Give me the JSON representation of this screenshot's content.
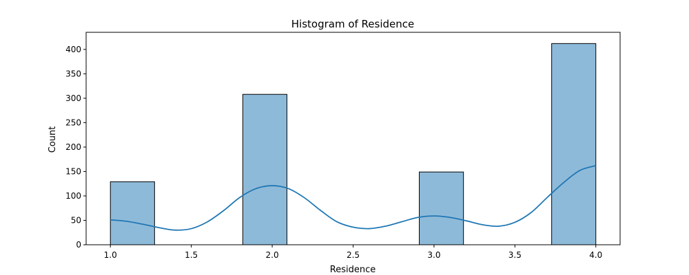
{
  "chart_data": {
    "type": "bar",
    "title": "Histogram of Residence",
    "xlabel": "Residence",
    "ylabel": "Count",
    "xlim": [
      0.85,
      4.15
    ],
    "ylim": [
      0,
      435
    ],
    "x_ticks": [
      "1.0",
      "1.5",
      "2.0",
      "2.5",
      "3.0",
      "3.5",
      "4.0"
    ],
    "y_ticks": [
      "0",
      "50",
      "100",
      "150",
      "200",
      "250",
      "300",
      "350",
      "400"
    ],
    "bins": [
      {
        "x0": 1.0,
        "x1": 1.273,
        "count": 129
      },
      {
        "x0": 1.818,
        "x1": 2.091,
        "count": 308
      },
      {
        "x0": 2.909,
        "x1": 3.182,
        "count": 149
      },
      {
        "x0": 3.727,
        "x1": 4.0,
        "count": 412
      }
    ],
    "kde": {
      "x": [
        1.0,
        1.1,
        1.2,
        1.3,
        1.4,
        1.5,
        1.6,
        1.7,
        1.8,
        1.9,
        2.0,
        2.1,
        2.2,
        2.3,
        2.4,
        2.5,
        2.6,
        2.7,
        2.8,
        2.9,
        3.0,
        3.1,
        3.2,
        3.3,
        3.4,
        3.5,
        3.6,
        3.7,
        3.8,
        3.9,
        4.0
      ],
      "y": [
        51,
        48,
        42,
        35,
        30,
        33,
        47,
        70,
        97,
        115,
        121,
        115,
        96,
        70,
        47,
        36,
        33,
        38,
        47,
        56,
        59,
        56,
        49,
        41,
        38,
        46,
        66,
        97,
        127,
        152,
        162
      ]
    },
    "bar_color": "#8ebad9",
    "bar_edge_color": "#000000",
    "line_color": "#1f77b4",
    "grid": false,
    "legend": "none"
  }
}
